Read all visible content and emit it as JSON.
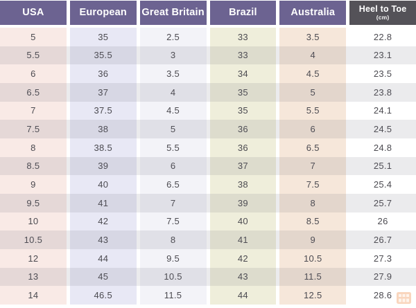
{
  "chart_data": {
    "type": "table",
    "columns": [
      {
        "id": "usa",
        "label": "USA",
        "header_bg": "#6c6391",
        "cell_bg": "#f9eae6"
      },
      {
        "id": "european",
        "label": "European",
        "header_bg": "#6c6391",
        "cell_bg": "#e8e8f5"
      },
      {
        "id": "great-britain",
        "label": "Great Britain",
        "header_bg": "#6c6391",
        "cell_bg": "#f3f3f8"
      },
      {
        "id": "brazil",
        "label": "Brazil",
        "header_bg": "#6c6391",
        "cell_bg": "#efeedb"
      },
      {
        "id": "australia",
        "label": "Australia",
        "header_bg": "#6c6391",
        "cell_bg": "#f6e7da"
      },
      {
        "id": "heel-to-toe",
        "label": "Heel to Toe",
        "sublabel": "(cm)",
        "header_bg": "#545258",
        "cell_bg": "#ffffff"
      }
    ],
    "rows": [
      [
        "5",
        "35",
        "2.5",
        "33",
        "3.5",
        "22.8"
      ],
      [
        "5.5",
        "35.5",
        "3",
        "33",
        "4",
        "23.1"
      ],
      [
        "6",
        "36",
        "3.5",
        "34",
        "4.5",
        "23.5"
      ],
      [
        "6.5",
        "37",
        "4",
        "35",
        "5",
        "23.8"
      ],
      [
        "7",
        "37.5",
        "4.5",
        "35",
        "5.5",
        "24.1"
      ],
      [
        "7.5",
        "38",
        "5",
        "36",
        "6",
        "24.5"
      ],
      [
        "8",
        "38.5",
        "5.5",
        "36",
        "6.5",
        "24.8"
      ],
      [
        "8.5",
        "39",
        "6",
        "37",
        "7",
        "25.1"
      ],
      [
        "9",
        "40",
        "6.5",
        "38",
        "7.5",
        "25.4"
      ],
      [
        "9.5",
        "41",
        "7",
        "39",
        "8",
        "25.7"
      ],
      [
        "10",
        "42",
        "7.5",
        "40",
        "8.5",
        "26"
      ],
      [
        "10.5",
        "43",
        "8",
        "41",
        "9",
        "26.7"
      ],
      [
        "12",
        "44",
        "9.5",
        "42",
        "10.5",
        "27.3"
      ],
      [
        "13",
        "45",
        "10.5",
        "43",
        "11.5",
        "27.9"
      ],
      [
        "14",
        "46.5",
        "11.5",
        "44",
        "12.5",
        "28.6"
      ]
    ]
  },
  "colors": {
    "header_purple": "#6c6391",
    "header_dark": "#545258",
    "header_text": "#ffffff",
    "cell_text": "#4b4a50",
    "alt_row_overlay": "rgba(104,104,114,0.13)",
    "watermark_orange": "#f29b5f"
  },
  "watermark": {
    "icon": "grid-logo"
  }
}
